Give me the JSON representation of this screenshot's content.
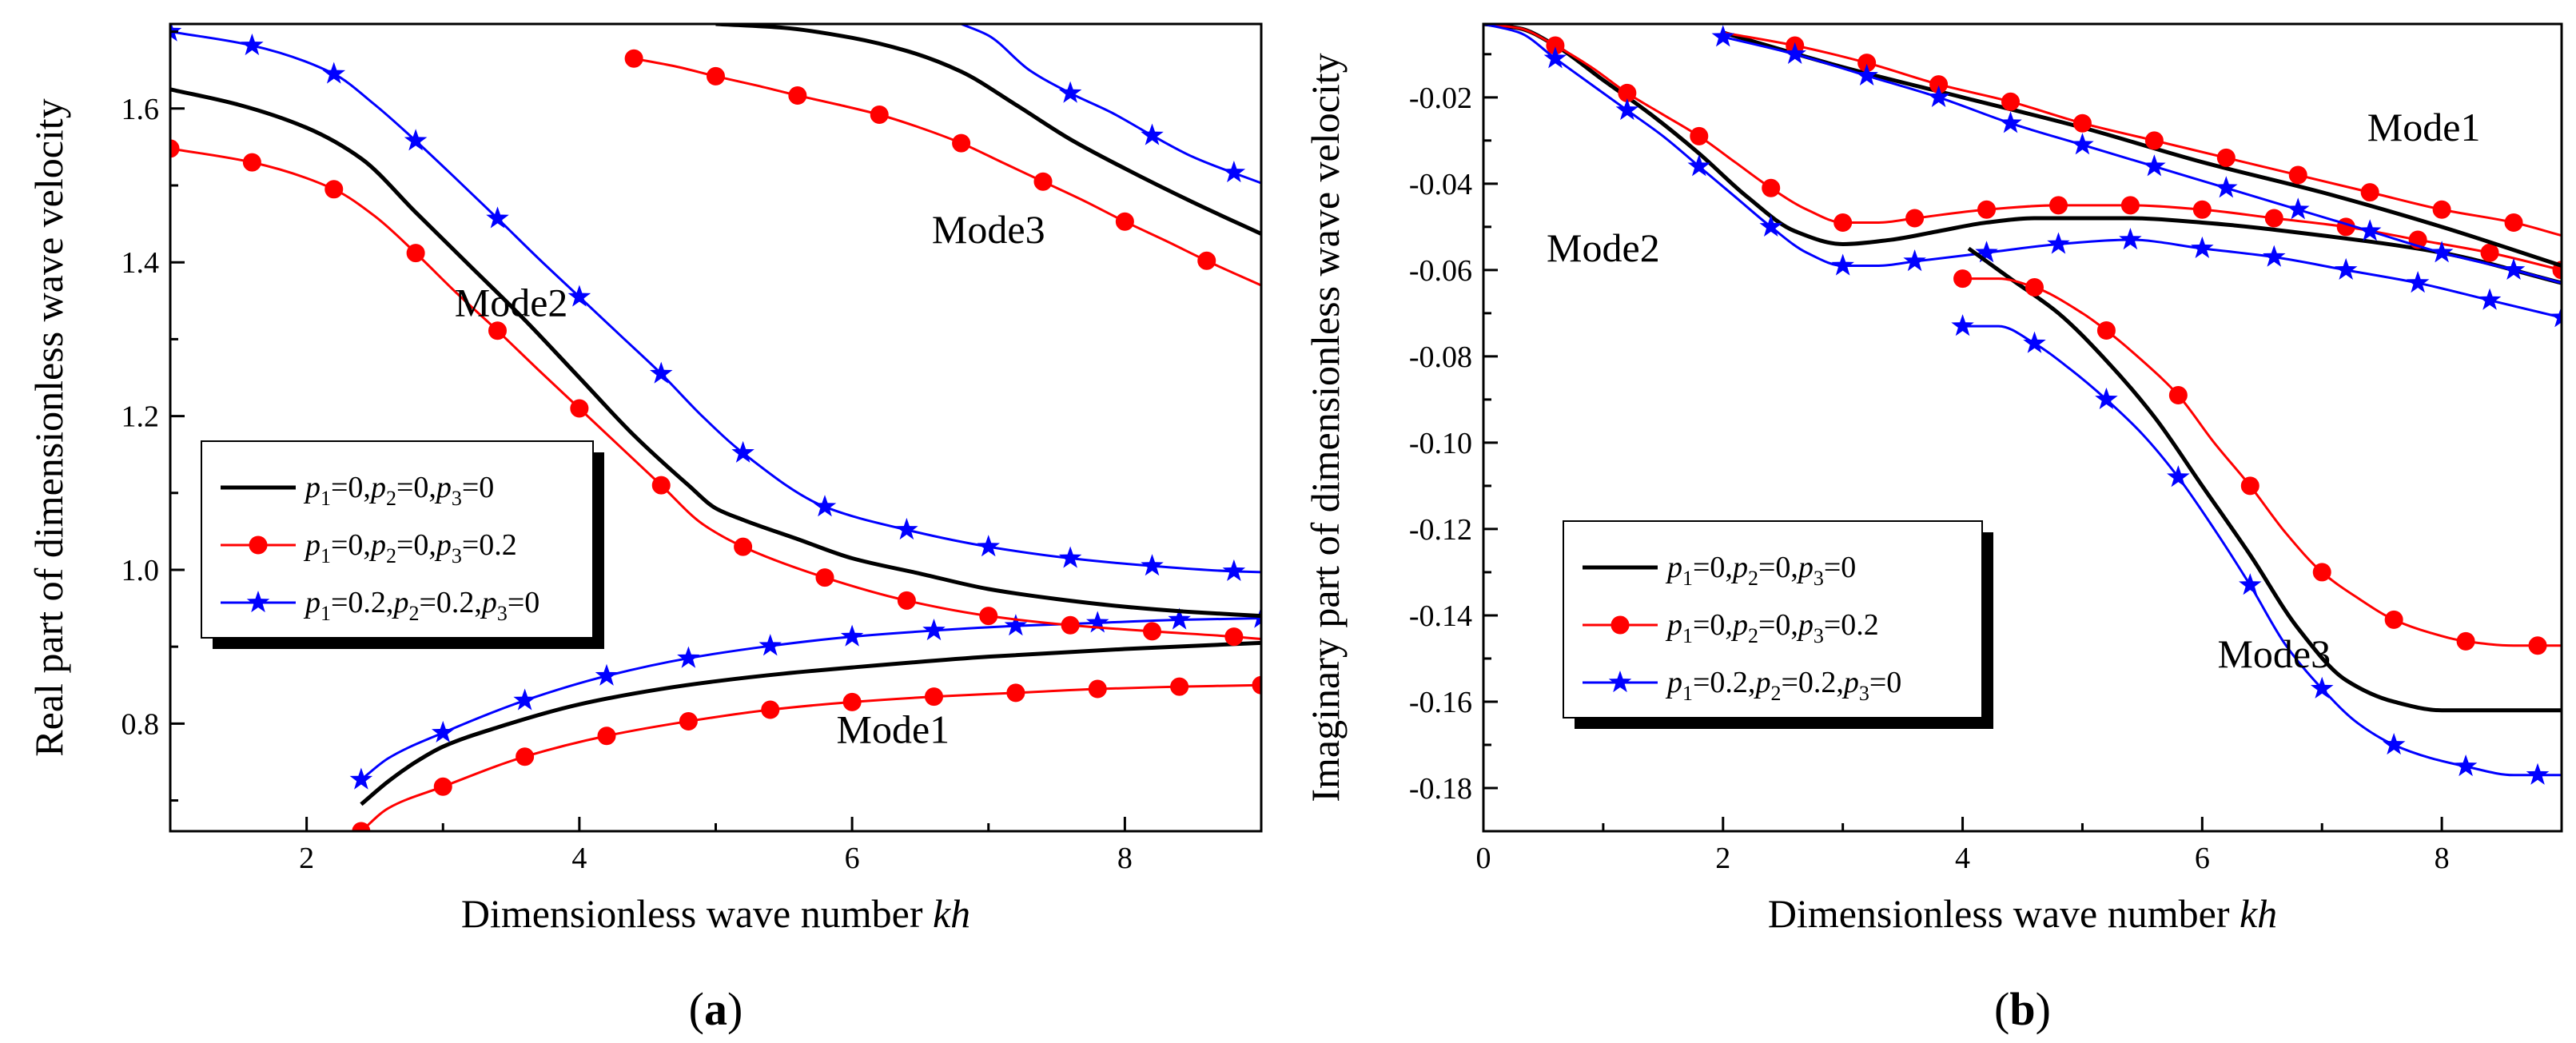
{
  "chart_data": [
    {
      "id": "a",
      "type": "line",
      "panel_label": "(a)",
      "panel_letter": "a",
      "xlabel": "Dimensionless wave number ",
      "xlabel_italic": "kh",
      "ylabel": "Real part of dimensionless wave velocity",
      "xlim": [
        1,
        9
      ],
      "ylim": [
        0.66,
        1.71
      ],
      "xticks": [
        2,
        4,
        6,
        8
      ],
      "yticks": [
        0.8,
        1.0,
        1.2,
        1.4,
        1.6
      ],
      "tick_format": 1,
      "legend_position": "left",
      "legend": [
        {
          "style": "black",
          "text": [
            "p",
            "1",
            "=0,",
            "p",
            "2",
            "=0,",
            "p",
            "3",
            "=0"
          ]
        },
        {
          "style": "red",
          "text": [
            "p",
            "1",
            "=0,",
            "p",
            "2",
            "=0,",
            "p",
            "3",
            "=0.2"
          ]
        },
        {
          "style": "blue",
          "text": [
            "p",
            "1",
            "=0.2,",
            "p",
            "2",
            "=0.2,",
            "p",
            "3",
            "=0"
          ]
        }
      ],
      "annotations": [
        {
          "text": "Mode1",
          "x": 6.3,
          "y": 0.775
        },
        {
          "text": "Mode2",
          "x": 3.5,
          "y": 1.33
        },
        {
          "text": "Mode3",
          "x": 7.0,
          "y": 1.425
        }
      ],
      "series": [
        {
          "style": "black",
          "mode": "Mode1",
          "x": [
            2.4,
            2.6,
            2.8,
            3.0,
            3.4,
            4.0,
            4.6,
            5.0,
            5.5,
            6.0,
            7.0,
            8.0,
            9.0
          ],
          "y": [
            0.695,
            0.725,
            0.75,
            0.77,
            0.795,
            0.825,
            0.845,
            0.855,
            0.865,
            0.873,
            0.887,
            0.897,
            0.905
          ]
        },
        {
          "style": "red",
          "mode": "Mode1",
          "x": [
            2.4,
            2.6,
            3.0,
            3.6,
            4.2,
            4.8,
            5.4,
            6.0,
            6.6,
            7.2,
            7.8,
            8.4,
            9.0
          ],
          "y": [
            0.66,
            0.69,
            0.718,
            0.757,
            0.784,
            0.803,
            0.818,
            0.828,
            0.835,
            0.84,
            0.845,
            0.848,
            0.85
          ],
          "markers": [
            2.4,
            3.0,
            3.6,
            4.2,
            4.8,
            5.4,
            6.0,
            6.6,
            7.2,
            7.8,
            8.4,
            9.0
          ]
        },
        {
          "style": "blue",
          "mode": "Mode1",
          "x": [
            2.4,
            2.6,
            3.0,
            3.6,
            4.2,
            4.8,
            5.4,
            6.0,
            6.6,
            7.2,
            7.8,
            8.4,
            9.0
          ],
          "y": [
            0.727,
            0.755,
            0.788,
            0.83,
            0.862,
            0.885,
            0.901,
            0.913,
            0.921,
            0.927,
            0.931,
            0.935,
            0.937
          ],
          "markers": [
            2.4,
            3.0,
            3.6,
            4.2,
            4.8,
            5.4,
            6.0,
            6.6,
            7.2,
            7.8,
            8.4,
            9.0
          ]
        },
        {
          "style": "black",
          "mode": "Mode2",
          "x": [
            1.0,
            1.5,
            2.0,
            2.4,
            2.8,
            3.2,
            3.6,
            4.0,
            4.4,
            4.8,
            5.0,
            5.2,
            5.6,
            6.0,
            6.5,
            7.0,
            7.5,
            8.0,
            8.5,
            9.0
          ],
          "y": [
            1.625,
            1.605,
            1.575,
            1.535,
            1.465,
            1.395,
            1.325,
            1.25,
            1.175,
            1.11,
            1.08,
            1.065,
            1.04,
            1.015,
            0.995,
            0.975,
            0.962,
            0.952,
            0.945,
            0.94
          ]
        },
        {
          "style": "red",
          "mode": "Mode2",
          "x": [
            1.0,
            1.6,
            2.2,
            2.5,
            2.8,
            3.1,
            3.4,
            3.7,
            4.0,
            4.3,
            4.6,
            4.9,
            5.2,
            5.8,
            6.4,
            7.0,
            7.6,
            8.2,
            8.8,
            9.0
          ],
          "y": [
            1.548,
            1.53,
            1.495,
            1.46,
            1.412,
            1.36,
            1.311,
            1.26,
            1.21,
            1.16,
            1.11,
            1.06,
            1.03,
            0.99,
            0.96,
            0.94,
            0.928,
            0.92,
            0.913,
            0.91
          ],
          "markers": [
            1.0,
            1.6,
            2.2,
            2.8,
            3.4,
            4.0,
            4.6,
            5.2,
            5.8,
            6.4,
            7.0,
            7.6,
            8.2,
            8.8
          ]
        },
        {
          "style": "blue",
          "mode": "Mode2",
          "x": [
            1.0,
            1.6,
            2.2,
            2.5,
            2.8,
            3.1,
            3.4,
            3.7,
            4.0,
            4.3,
            4.6,
            4.9,
            5.2,
            5.8,
            6.4,
            7.0,
            7.6,
            8.2,
            8.8,
            9.0
          ],
          "y": [
            1.7,
            1.682,
            1.645,
            1.605,
            1.558,
            1.508,
            1.457,
            1.405,
            1.355,
            1.305,
            1.255,
            1.2,
            1.152,
            1.082,
            1.052,
            1.03,
            1.015,
            1.005,
            0.998,
            0.997
          ],
          "markers": [
            1.0,
            1.6,
            2.2,
            2.8,
            3.4,
            4.0,
            4.6,
            5.2,
            5.8,
            6.4,
            7.0,
            7.6,
            8.2,
            8.8
          ]
        },
        {
          "style": "black",
          "mode": "Mode3",
          "x": [
            5.0,
            5.5,
            6.0,
            6.4,
            6.8,
            7.2,
            7.6,
            8.0,
            8.5,
            9.0
          ],
          "y": [
            1.71,
            1.705,
            1.692,
            1.675,
            1.648,
            1.605,
            1.56,
            1.522,
            1.478,
            1.437
          ]
        },
        {
          "style": "red",
          "mode": "Mode3",
          "x": [
            4.4,
            4.7,
            5.0,
            5.3,
            5.6,
            5.9,
            6.2,
            6.5,
            6.8,
            7.1,
            7.4,
            7.7,
            8.0,
            8.3,
            8.6,
            9.0
          ],
          "y": [
            1.665,
            1.655,
            1.642,
            1.63,
            1.617,
            1.605,
            1.592,
            1.575,
            1.555,
            1.53,
            1.505,
            1.48,
            1.453,
            1.428,
            1.402,
            1.37
          ],
          "markers": [
            4.4,
            5.0,
            5.6,
            6.2,
            6.8,
            7.4,
            8.0,
            8.6
          ]
        },
        {
          "style": "blue",
          "mode": "Mode3",
          "x": [
            6.8,
            7.0,
            7.3,
            7.6,
            7.9,
            8.2,
            8.5,
            9.0
          ],
          "y": [
            1.71,
            1.695,
            1.65,
            1.62,
            1.595,
            1.565,
            1.537,
            1.503
          ],
          "markers": [
            7.6,
            8.2,
            8.8
          ]
        }
      ]
    },
    {
      "id": "b",
      "type": "line",
      "panel_label": "(b)",
      "panel_letter": "b",
      "xlabel": "Dimensionless wave number ",
      "xlabel_italic": "kh",
      "ylabel": "Imaginary part of dimensionless wave velocity",
      "xlim": [
        0,
        9
      ],
      "ylim": [
        -0.19,
        -0.003
      ],
      "xticks": [
        0,
        2,
        4,
        6,
        8
      ],
      "yticks": [
        -0.02,
        -0.04,
        -0.06,
        -0.08,
        -0.1,
        -0.12,
        -0.14,
        -0.16,
        -0.18
      ],
      "tick_format": 2,
      "legend_position": "bottom-left",
      "legend": [
        {
          "style": "black",
          "text": [
            "p",
            "1",
            "=0,",
            "p",
            "2",
            "=0,",
            "p",
            "3",
            "=0"
          ]
        },
        {
          "style": "red",
          "text": [
            "p",
            "1",
            "=0,",
            "p",
            "2",
            "=0,",
            "p",
            "3",
            "=0.2"
          ]
        },
        {
          "style": "blue",
          "text": [
            "p",
            "1",
            "=0.2,",
            "p",
            "2",
            "=0.2,",
            "p",
            "3",
            "=0"
          ]
        }
      ],
      "annotations": [
        {
          "text": "Mode1",
          "x": 7.85,
          "y": -0.03
        },
        {
          "text": "Mode2",
          "x": 1.0,
          "y": -0.058
        },
        {
          "text": "Mode3",
          "x": 6.6,
          "y": -0.152
        }
      ],
      "series": [
        {
          "style": "black",
          "mode": "Mode2",
          "x": [
            0.0,
            0.3,
            0.6,
            1.0,
            1.4,
            1.8,
            2.2,
            2.6,
            3.0,
            3.4,
            3.8,
            4.2,
            4.6,
            5.0,
            5.4,
            6.0,
            7.0,
            8.0,
            9.0
          ],
          "y": [
            -0.003,
            -0.004,
            -0.008,
            -0.016,
            -0.024,
            -0.033,
            -0.043,
            -0.051,
            -0.054,
            -0.053,
            -0.051,
            -0.049,
            -0.048,
            -0.048,
            -0.048,
            -0.049,
            -0.052,
            -0.056,
            -0.063
          ]
        },
        {
          "style": "red",
          "mode": "Mode2",
          "x": [
            0.0,
            0.3,
            0.6,
            0.9,
            1.2,
            1.5,
            1.8,
            2.1,
            2.4,
            2.7,
            3.0,
            3.3,
            3.6,
            4.2,
            4.8,
            5.4,
            6.0,
            6.6,
            7.2,
            7.8,
            8.4,
            9.0
          ],
          "y": [
            -0.003,
            -0.004,
            -0.008,
            -0.013,
            -0.019,
            -0.024,
            -0.029,
            -0.035,
            -0.041,
            -0.046,
            -0.049,
            -0.049,
            -0.048,
            -0.046,
            -0.045,
            -0.045,
            -0.046,
            -0.048,
            -0.05,
            -0.053,
            -0.056,
            -0.06
          ],
          "markers": [
            0.6,
            1.2,
            1.8,
            2.4,
            3.0,
            3.6,
            4.2,
            4.8,
            5.4,
            6.0,
            6.6,
            7.2,
            7.8,
            8.4,
            9.0
          ]
        },
        {
          "style": "blue",
          "mode": "Mode2",
          "x": [
            0.0,
            0.3,
            0.6,
            0.9,
            1.2,
            1.5,
            1.8,
            2.1,
            2.4,
            2.7,
            3.0,
            3.3,
            3.6,
            4.2,
            4.8,
            5.4,
            6.0,
            6.6,
            7.2,
            7.8,
            8.4,
            9.0
          ],
          "y": [
            -0.003,
            -0.005,
            -0.011,
            -0.017,
            -0.023,
            -0.029,
            -0.036,
            -0.043,
            -0.05,
            -0.056,
            -0.059,
            -0.059,
            -0.058,
            -0.056,
            -0.054,
            -0.053,
            -0.055,
            -0.057,
            -0.06,
            -0.063,
            -0.067,
            -0.071
          ],
          "markers": [
            0.6,
            1.2,
            1.8,
            2.4,
            3.0,
            3.6,
            4.2,
            4.8,
            5.4,
            6.0,
            6.6,
            7.2,
            7.8,
            8.4,
            9.0
          ]
        },
        {
          "style": "black",
          "mode": "Mode1",
          "x": [
            2.0,
            3.0,
            4.0,
            5.0,
            6.0,
            7.0,
            8.0,
            9.0
          ],
          "y": [
            -0.005,
            -0.013,
            -0.02,
            -0.027,
            -0.035,
            -0.042,
            -0.05,
            -0.059
          ]
        },
        {
          "style": "red",
          "mode": "Mode1",
          "x": [
            2.0,
            2.6,
            3.2,
            3.8,
            4.4,
            5.0,
            5.6,
            6.2,
            6.8,
            7.4,
            8.0,
            8.6,
            9.0
          ],
          "y": [
            -0.005,
            -0.008,
            -0.012,
            -0.017,
            -0.021,
            -0.026,
            -0.03,
            -0.034,
            -0.038,
            -0.042,
            -0.046,
            -0.049,
            -0.052
          ],
          "markers": [
            2.6,
            3.2,
            3.8,
            4.4,
            5.0,
            5.6,
            6.2,
            6.8,
            7.4,
            8.0,
            8.6
          ]
        },
        {
          "style": "blue",
          "mode": "Mode1",
          "x": [
            2.0,
            2.6,
            3.2,
            3.8,
            4.4,
            5.0,
            5.6,
            6.2,
            6.8,
            7.4,
            8.0,
            8.6,
            9.0
          ],
          "y": [
            -0.006,
            -0.01,
            -0.015,
            -0.02,
            -0.026,
            -0.031,
            -0.036,
            -0.041,
            -0.046,
            -0.051,
            -0.056,
            -0.06,
            -0.063
          ],
          "markers": [
            2.0,
            2.6,
            3.2,
            3.8,
            4.4,
            5.0,
            5.6,
            6.2,
            6.8,
            7.4,
            8.0,
            8.6
          ]
        },
        {
          "style": "black",
          "mode": "Mode3",
          "x": [
            4.05,
            4.4,
            4.8,
            5.2,
            5.6,
            6.0,
            6.4,
            6.8,
            7.2,
            7.6,
            8.0,
            8.4,
            9.0
          ],
          "y": [
            -0.055,
            -0.062,
            -0.07,
            -0.081,
            -0.094,
            -0.11,
            -0.126,
            -0.143,
            -0.155,
            -0.16,
            -0.162,
            -0.162,
            -0.162
          ]
        },
        {
          "style": "red",
          "mode": "Mode3",
          "x": [
            4.0,
            4.3,
            4.6,
            5.0,
            5.2,
            5.5,
            5.8,
            6.1,
            6.4,
            6.7,
            7.0,
            7.3,
            7.6,
            7.9,
            8.2,
            8.6,
            9.0
          ],
          "y": [
            -0.062,
            -0.062,
            -0.064,
            -0.07,
            -0.074,
            -0.081,
            -0.089,
            -0.1,
            -0.11,
            -0.121,
            -0.13,
            -0.136,
            -0.141,
            -0.144,
            -0.146,
            -0.147,
            -0.147
          ],
          "markers": [
            4.0,
            4.6,
            5.2,
            5.8,
            6.4,
            7.0,
            7.6,
            8.2,
            8.8
          ]
        },
        {
          "style": "blue",
          "mode": "Mode3",
          "x": [
            4.0,
            4.3,
            4.6,
            4.9,
            5.2,
            5.5,
            5.8,
            6.1,
            6.4,
            6.7,
            7.0,
            7.3,
            7.6,
            7.9,
            8.2,
            8.6,
            9.0
          ],
          "y": [
            -0.073,
            -0.073,
            -0.077,
            -0.083,
            -0.09,
            -0.098,
            -0.108,
            -0.12,
            -0.133,
            -0.147,
            -0.157,
            -0.165,
            -0.17,
            -0.173,
            -0.175,
            -0.177,
            -0.177
          ],
          "markers": [
            4.0,
            4.6,
            5.2,
            5.8,
            6.4,
            7.0,
            7.6,
            8.2,
            8.8
          ]
        }
      ]
    }
  ],
  "styles": {
    "black": {
      "color": "#000000",
      "marker": "none"
    },
    "red": {
      "color": "#ff0000",
      "marker": "circle"
    },
    "blue": {
      "color": "#0000ff",
      "marker": "star"
    }
  }
}
